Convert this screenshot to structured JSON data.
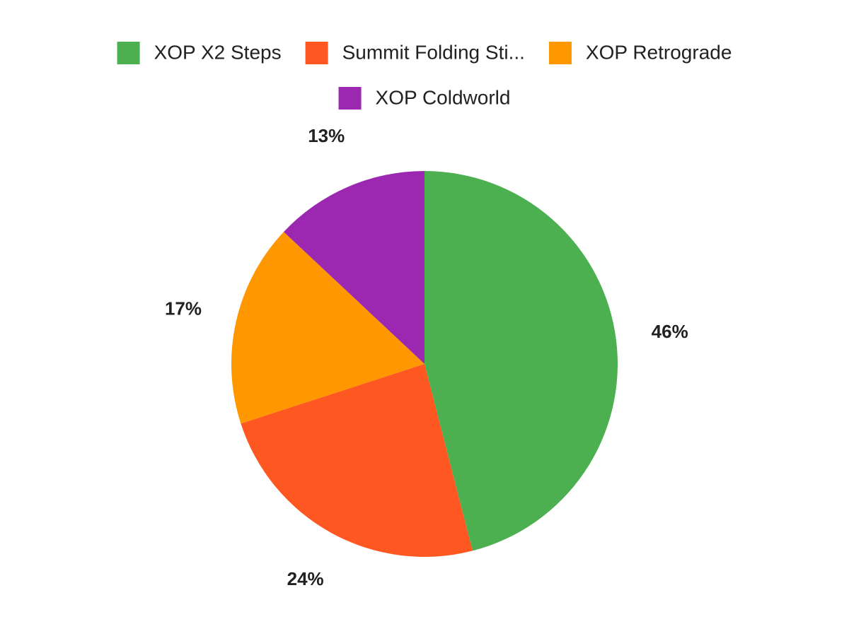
{
  "chart_data": {
    "type": "pie",
    "categories": [
      "XOP X2 Steps",
      "Summit Folding Sti...",
      "XOP Retrograde",
      "XOP Coldworld"
    ],
    "values": [
      46,
      24,
      17,
      13
    ],
    "value_labels": [
      "46%",
      "24%",
      "17%",
      "13%"
    ],
    "colors": [
      "#4caf50",
      "#ff5722",
      "#ff9800",
      "#9c27b0"
    ],
    "legend": "top"
  }
}
